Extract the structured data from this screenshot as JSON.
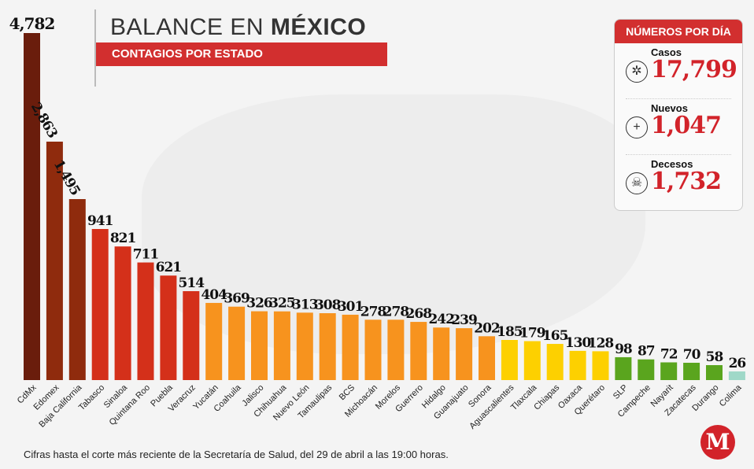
{
  "header": {
    "title_light": "BALANCE EN ",
    "title_bold": "MÉXICO",
    "subtitle": "CONTAGIOS POR ESTADO"
  },
  "stats": {
    "title": "NÚMEROS POR DÍA",
    "items": [
      {
        "label": "Casos",
        "value": "17,799",
        "icon": "virus-icon"
      },
      {
        "label": "Nuevos",
        "value": "1,047",
        "icon": "plus-icon"
      },
      {
        "label": "Decesos",
        "value": "1,732",
        "icon": "skull-icon"
      }
    ]
  },
  "footnote": "Cifras hasta el corte más reciente de la Secretaría de Salud, del 29 de abril a las 19:00 horas.",
  "logo": "M",
  "chart_data": {
    "type": "bar",
    "title": "Contagios por estado",
    "categories": [
      "CdMx",
      "Edomex",
      "Baja California",
      "Tabasco",
      "Sinaloa",
      "Quintana Roo",
      "Puebla",
      "Veracruz",
      "Yucatán",
      "Coahuila",
      "Jalisco",
      "Chihuahua",
      "Nuevo León",
      "Tamaulipas",
      "BCS",
      "Michoacán",
      "Morelos",
      "Guerrero",
      "Hidalgo",
      "Guanajuato",
      "Sonora",
      "Aguascalientes",
      "Tlaxcala",
      "Chiapas",
      "Oaxaca",
      "Querétaro",
      "SLP",
      "Campeche",
      "Nayarit",
      "Zacatecas",
      "Durango",
      "Colima"
    ],
    "values": [
      4782,
      2863,
      1495,
      941,
      821,
      711,
      621,
      514,
      404,
      369,
      326,
      325,
      313,
      308,
      301,
      278,
      278,
      268,
      242,
      239,
      202,
      185,
      179,
      165,
      130,
      128,
      98,
      87,
      72,
      70,
      58,
      26
    ],
    "value_labels": [
      "4,782",
      "2,863",
      "1,495",
      "941",
      "821",
      "711",
      "621",
      "514",
      "404",
      "369",
      "326",
      "325",
      "313",
      "308",
      "301",
      "278",
      "278",
      "268",
      "242",
      "239",
      "202",
      "185",
      "179",
      "165",
      "130",
      "128",
      "98",
      "87",
      "72",
      "70",
      "58",
      "26"
    ],
    "color_groups": [
      {
        "from": 0,
        "to": 0,
        "color": "#6a1d0c"
      },
      {
        "from": 1,
        "to": 2,
        "color": "#8f2b0d"
      },
      {
        "from": 3,
        "to": 7,
        "color": "#d4301a"
      },
      {
        "from": 8,
        "to": 20,
        "color": "#f7931e"
      },
      {
        "from": 21,
        "to": 25,
        "color": "#fdd000"
      },
      {
        "from": 26,
        "to": 30,
        "color": "#5aa51e"
      },
      {
        "from": 31,
        "to": 31,
        "color": "#9fd8c8"
      }
    ],
    "grid": false
  }
}
